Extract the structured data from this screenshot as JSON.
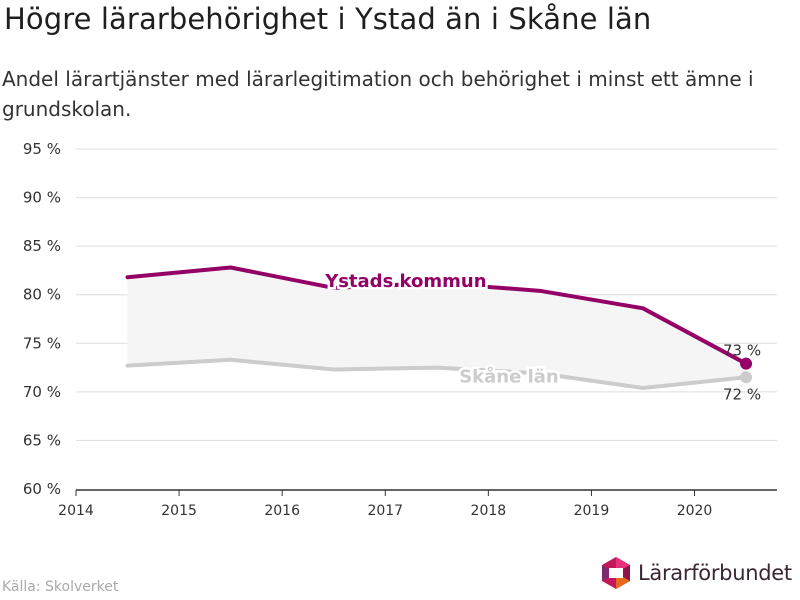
{
  "title": "Högre lärarbehörighet i Ystad än i Skåne län",
  "subtitle": "Andel lärartjänster med lärarlegitimation och behörighet i minst ett ämne i grundskolan.",
  "source": "Källa: Skolverket",
  "brand": "Lärarförbundet",
  "colors": {
    "ystad": "#930066",
    "skane": "#cccccc",
    "band": "#f5f5f5",
    "grid": "#dddddd",
    "axis": "#333333"
  },
  "chart_data": {
    "type": "line",
    "x": [
      2014.5,
      2015.5,
      2016.5,
      2017.5,
      2018.5,
      2019.5,
      2020.5
    ],
    "x_ticks": [
      "2014",
      "2015",
      "2016",
      "2017",
      "2018",
      "2019",
      "2020"
    ],
    "xlim": [
      2014,
      2020.8
    ],
    "ylim": [
      60,
      95
    ],
    "y_ticks": [
      "60 %",
      "65 %",
      "70 %",
      "75 %",
      "80 %",
      "85 %",
      "90 %",
      "95 %"
    ],
    "grid": true,
    "series": [
      {
        "name": "Ystads kommun",
        "values": [
          81.8,
          82.8,
          80.7,
          81.2,
          80.4,
          78.6,
          72.9
        ],
        "end_label": "73 %"
      },
      {
        "name": "Skåne län",
        "values": [
          72.7,
          73.3,
          72.3,
          72.5,
          71.9,
          70.4,
          71.5
        ],
        "end_label": "72 %"
      }
    ]
  }
}
